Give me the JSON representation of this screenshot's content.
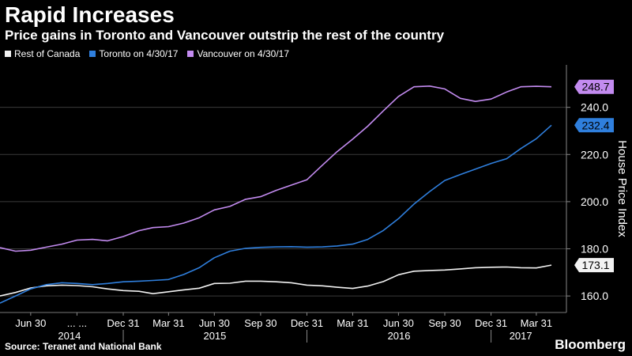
{
  "title": "Rapid Increases",
  "subtitle": "Price gains in Toronto and Vancouver outstrip the rest of the country",
  "source": "Source: Teranet and National Bank",
  "brand": "Bloomberg",
  "colors": {
    "background": "#000000",
    "rest_of_canada": "#f2f2f2",
    "toronto": "#2f7fdd",
    "vancouver": "#c38bf0",
    "axis_text": "#ffffff",
    "grid": "#3b3b3b"
  },
  "chart_data": {
    "type": "line",
    "title": "Rapid Increases",
    "subtitle": "Price gains in Toronto and Vancouver outstrip the rest of the country",
    "ylabel": "House Price Index",
    "xlabel": "",
    "ylim": [
      153,
      258
    ],
    "yticks": [
      160,
      180,
      200,
      220,
      240
    ],
    "ytick_labels": [
      "160.0",
      "180.0",
      "200.0",
      "220.0",
      "240.0"
    ],
    "grid": true,
    "legend_position": "top-left",
    "x": [
      "2014-04-30",
      "2014-05-31",
      "2014-06-30",
      "2014-07-31",
      "2014-08-31",
      "2014-09-30",
      "2014-10-31",
      "2014-11-30",
      "2014-12-31",
      "2015-01-31",
      "2015-02-28",
      "2015-03-31",
      "2015-04-30",
      "2015-05-31",
      "2015-06-30",
      "2015-07-31",
      "2015-08-31",
      "2015-09-30",
      "2015-10-31",
      "2015-11-30",
      "2015-12-31",
      "2016-01-31",
      "2016-02-29",
      "2016-03-31",
      "2016-04-30",
      "2016-05-31",
      "2016-06-30",
      "2016-07-31",
      "2016-08-31",
      "2016-09-30",
      "2016-10-31",
      "2016-11-30",
      "2016-12-31",
      "2017-01-31",
      "2017-02-28",
      "2017-03-31",
      "2017-04-30"
    ],
    "x_ticks": [
      {
        "date": "2014-06-30",
        "label": "Jun 30"
      },
      {
        "date": "2014-09-30",
        "label": "... ..."
      },
      {
        "date": "2014-12-31",
        "label": "Dec 31"
      },
      {
        "date": "2015-03-31",
        "label": "Mar 31"
      },
      {
        "date": "2015-06-30",
        "label": "Jun 30"
      },
      {
        "date": "2015-09-30",
        "label": "Sep 30"
      },
      {
        "date": "2015-12-31",
        "label": "Dec 31"
      },
      {
        "date": "2016-03-31",
        "label": "Mar 31"
      },
      {
        "date": "2016-06-30",
        "label": "Jun 30"
      },
      {
        "date": "2016-09-30",
        "label": "Sep 30"
      },
      {
        "date": "2016-12-31",
        "label": "Dec 31"
      },
      {
        "date": "2017-03-31",
        "label": "Mar 31"
      }
    ],
    "year_labels": [
      {
        "label": "2014",
        "date": "2014-09-15"
      },
      {
        "label": "2015",
        "date": "2015-07-01"
      },
      {
        "label": "2016",
        "date": "2016-07-01"
      },
      {
        "label": "2017",
        "date": "2017-02-28"
      }
    ],
    "year_dividers": [
      "2014-12-31",
      "2015-12-31",
      "2016-12-31"
    ],
    "series": [
      {
        "name": "Rest of Canada",
        "color": "#f2f2f2",
        "end_label": "173.1",
        "values": [
          160.0,
          161.5,
          163.4,
          164.3,
          164.6,
          164.4,
          163.9,
          163.0,
          162.3,
          162.0,
          161.0,
          161.8,
          162.6,
          163.3,
          165.3,
          165.4,
          166.3,
          166.3,
          166.0,
          165.6,
          164.6,
          164.3,
          163.7,
          163.2,
          164.2,
          166.1,
          169.0,
          170.5,
          170.8,
          171.0,
          171.5,
          172.0,
          172.2,
          172.3,
          172.0,
          171.9,
          173.1
        ]
      },
      {
        "name": "Toronto on 4/30/17",
        "color": "#2f7fdd",
        "end_label": "232.4",
        "values": [
          157.0,
          160.0,
          163.0,
          164.8,
          165.6,
          165.3,
          164.8,
          165.3,
          166.0,
          166.3,
          166.6,
          167.0,
          169.1,
          172.0,
          176.2,
          179.0,
          180.2,
          180.6,
          180.8,
          180.9,
          180.7,
          180.8,
          181.2,
          182.0,
          184.0,
          187.8,
          192.8,
          199.0,
          204.3,
          209.0,
          211.5,
          213.8,
          216.2,
          218.2,
          222.5,
          226.7,
          232.4
        ]
      },
      {
        "name": "Vancouver on 4/30/17",
        "color": "#c38bf0",
        "end_label": "248.7",
        "values": [
          180.5,
          179.0,
          179.4,
          180.7,
          182.0,
          183.7,
          184.0,
          183.4,
          185.2,
          187.7,
          189.0,
          189.4,
          190.9,
          193.2,
          196.5,
          198.0,
          201.0,
          202.1,
          204.8,
          207.0,
          209.3,
          215.5,
          221.2,
          226.5,
          232.0,
          238.5,
          244.6,
          248.7,
          249.0,
          247.8,
          243.8,
          242.5,
          243.5,
          246.5,
          248.7,
          248.9,
          248.7
        ]
      }
    ]
  }
}
